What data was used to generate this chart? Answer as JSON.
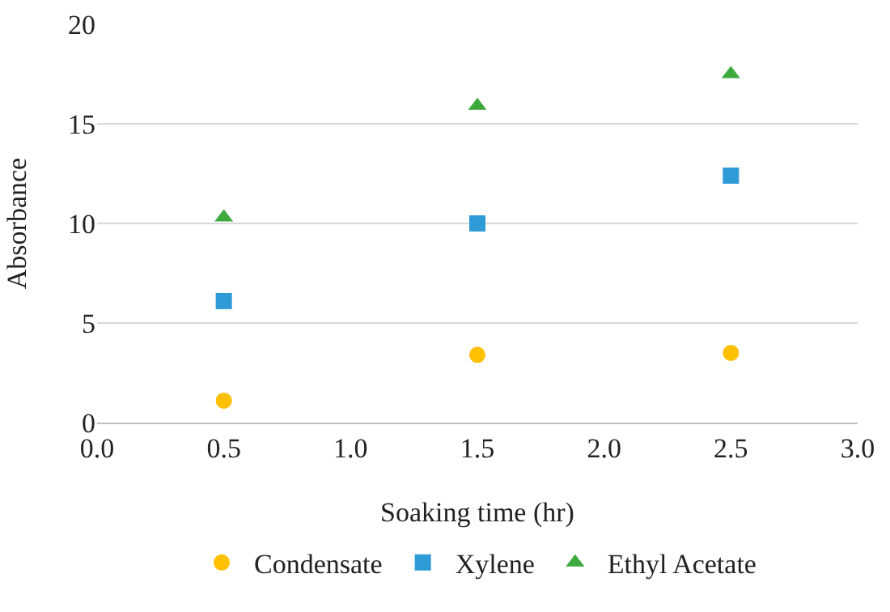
{
  "chart_data": {
    "type": "scatter",
    "xlabel": "Soaking time (hr)",
    "ylabel": "Absorbance",
    "x": [
      0.5,
      1.5,
      2.5
    ],
    "series": [
      {
        "name": "Condensate",
        "color": "#ffc000",
        "marker": "circle",
        "values": [
          1.1,
          3.4,
          3.5
        ]
      },
      {
        "name": "Xylene",
        "color": "#2e9bd6",
        "marker": "square",
        "values": [
          6.1,
          10.0,
          12.4
        ]
      },
      {
        "name": "Ethyl Acetate",
        "color": "#3eaa3e",
        "marker": "triangle",
        "values": [
          10.3,
          15.9,
          17.5
        ]
      }
    ],
    "xlim": [
      0,
      3
    ],
    "xticks": [
      {
        "value": 0,
        "label": "0.0"
      },
      {
        "value": 0.5,
        "label": "0.5"
      },
      {
        "value": 1,
        "label": "1.0"
      },
      {
        "value": 1.5,
        "label": "1.5"
      },
      {
        "value": 2,
        "label": "2.0"
      },
      {
        "value": 2.5,
        "label": "2.5"
      },
      {
        "value": 3,
        "label": "3.0"
      }
    ],
    "ylim": [
      0,
      20
    ],
    "yticks": [
      0,
      5,
      10,
      15,
      20
    ],
    "grid": "y",
    "legend": "bottom"
  }
}
